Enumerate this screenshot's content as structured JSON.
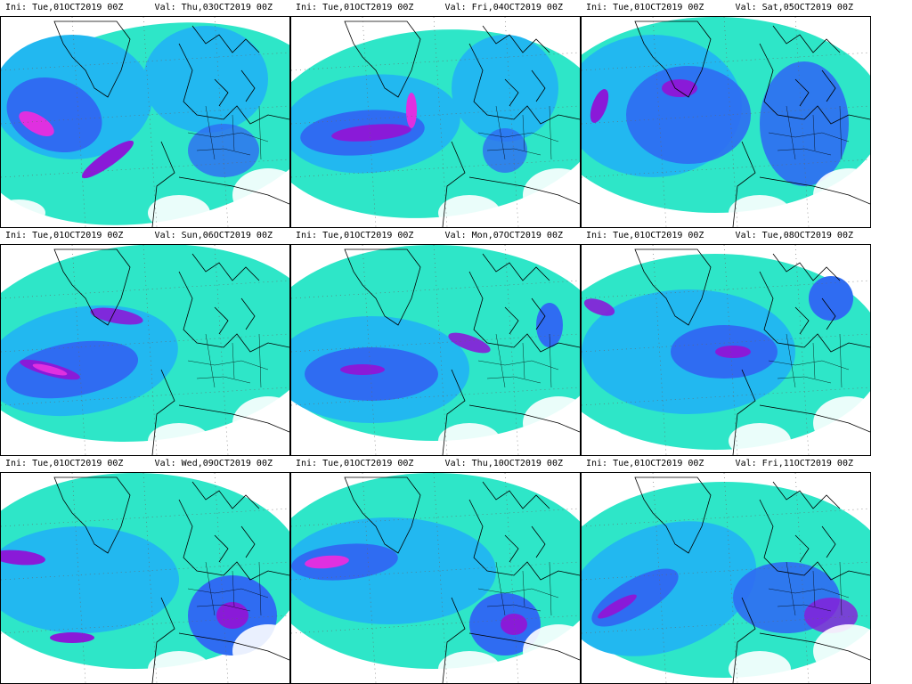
{
  "panels": [
    {
      "ini": "Ini: Tue,01OCT2019 00Z",
      "val": "Val: Thu,03OCT2019 00Z"
    },
    {
      "ini": "Ini: Tue,01OCT2019 00Z",
      "val": "Val: Fri,04OCT2019 00Z"
    },
    {
      "ini": "Ini: Tue,01OCT2019 00Z",
      "val": "Val: Sat,05OCT2019 00Z"
    },
    {
      "ini": "Ini: Tue,01OCT2019 00Z",
      "val": "Val: Sun,06OCT2019 00Z"
    },
    {
      "ini": "Ini: Tue,01OCT2019 00Z",
      "val": "Val: Mon,07OCT2019 00Z"
    },
    {
      "ini": "Ini: Tue,01OCT2019 00Z",
      "val": "Val: Tue,08OCT2019 00Z"
    },
    {
      "ini": "Ini: Tue,01OCT2019 00Z",
      "val": "Val: Wed,09OCT2019 00Z"
    },
    {
      "ini": "Ini: Tue,01OCT2019 00Z",
      "val": "Val: Thu,10OCT2019 00Z"
    },
    {
      "ini": "Ini: Tue,01OCT2019 00Z",
      "val": "Val: Fri,11OCT2019 00Z"
    }
  ],
  "colors": {
    "field_low": "#2ee6c8",
    "field_mid": "#22b8f0",
    "field_high": "#2f6cf2",
    "field_higher": "#2b2fd8",
    "field_peak": "#8a1ad8",
    "field_max": "#e030e0",
    "coastline": "#000000",
    "background": "#ffffff"
  }
}
